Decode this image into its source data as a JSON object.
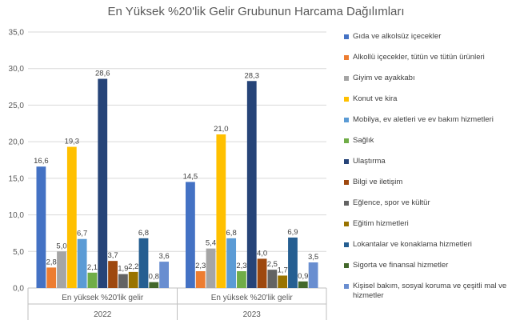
{
  "chart_data": {
    "type": "bar",
    "title": "En Yüksek %20'lik Gelir Grubunun Harcama Dağılımları",
    "groups": [
      {
        "category": "En yüksek %20'lik gelir",
        "year": "2022"
      },
      {
        "category": "En yüksek %20'lik gelir",
        "year": "2023"
      }
    ],
    "ylim": [
      0,
      35
    ],
    "yticks": [
      "0,0",
      "5,0",
      "10,0",
      "15,0",
      "20,0",
      "25,0",
      "30,0",
      "35,0"
    ],
    "gridlines": true,
    "legend_position": "right",
    "series": [
      {
        "name": "Gıda ve alkolsüz içecekler",
        "color": "#4472C4",
        "values": [
          16.6,
          14.5
        ],
        "labels": [
          "16,6",
          "14,5"
        ]
      },
      {
        "name": "Alkollü içecekler, tütün ve tütün ürünleri",
        "color": "#ED7D31",
        "values": [
          2.8,
          2.3
        ],
        "labels": [
          "2,8",
          "2,3"
        ]
      },
      {
        "name": "Giyim ve ayakkabı",
        "color": "#A5A5A5",
        "values": [
          5.0,
          5.4
        ],
        "labels": [
          "5,0",
          "5,4"
        ]
      },
      {
        "name": "Konut ve kira",
        "color": "#FFC000",
        "values": [
          19.3,
          21.0
        ],
        "labels": [
          "19,3",
          "21,0"
        ]
      },
      {
        "name": "Mobilya, ev aletleri ve ev bakım hizmetleri",
        "color": "#5B9BD5",
        "values": [
          6.7,
          6.8
        ],
        "labels": [
          "6,7",
          "6,8"
        ]
      },
      {
        "name": "Sağlık",
        "color": "#70AD47",
        "values": [
          2.1,
          2.3
        ],
        "labels": [
          "2,1",
          "2,3"
        ]
      },
      {
        "name": "Ulaştırma",
        "color": "#264478",
        "values": [
          28.6,
          28.3
        ],
        "labels": [
          "28,6",
          "28,3"
        ]
      },
      {
        "name": "Bilgi ve iletişim",
        "color": "#9E480E",
        "values": [
          3.7,
          4.0
        ],
        "labels": [
          "3,7",
          "4,0"
        ]
      },
      {
        "name": "Eğlence, spor ve kültür",
        "color": "#636363",
        "values": [
          1.9,
          2.5
        ],
        "labels": [
          "1,9",
          "2,5"
        ]
      },
      {
        "name": "Eğitim hizmetleri",
        "color": "#997300",
        "values": [
          2.2,
          1.7
        ],
        "labels": [
          "2,2",
          "1,7"
        ]
      },
      {
        "name": "Lokantalar ve konaklama hizmetleri",
        "color": "#255E91",
        "values": [
          6.8,
          6.9
        ],
        "labels": [
          "6,8",
          "6,9"
        ]
      },
      {
        "name": "Sigorta ve finansal hizmetler",
        "color": "#43682B",
        "values": [
          0.8,
          0.9
        ],
        "labels": [
          "0,8",
          "0,9"
        ]
      },
      {
        "name": "Kişisel bakım, sosyal koruma ve çeşitli mal ve hizmetler",
        "color": "#698ED0",
        "values": [
          3.6,
          3.5
        ],
        "labels": [
          "3,6",
          "3,5"
        ]
      }
    ]
  }
}
